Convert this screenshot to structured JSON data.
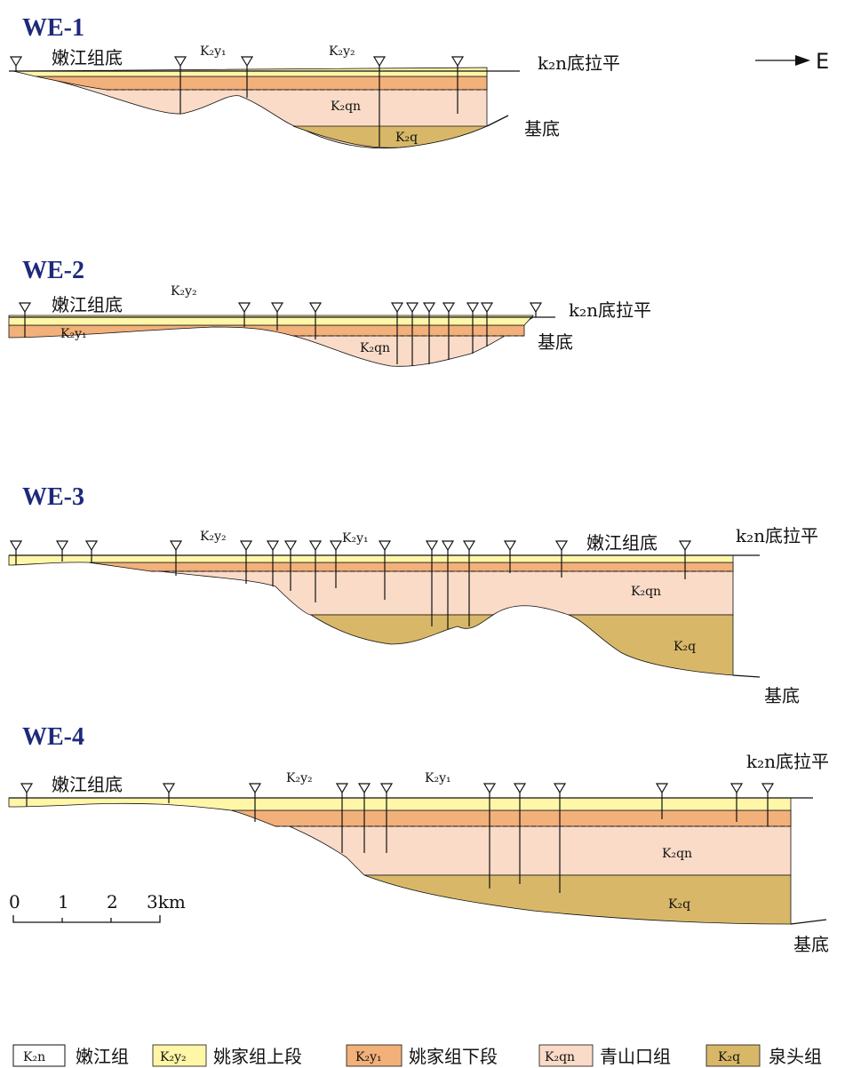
{
  "arrow": "E",
  "sections": [
    {
      "title": "WE-1",
      "labels": [
        "嫩江组底",
        "K₂y₁",
        "K₂y₂",
        "k₂n底拉平",
        "K₂qn",
        "K₂q",
        "基底"
      ]
    },
    {
      "title": "WE-2",
      "labels": [
        "嫩江组底",
        "K₂y₂",
        "k₂n底拉平",
        "K₂y₁",
        "K₂qn",
        "基底"
      ]
    },
    {
      "title": "WE-3",
      "labels": [
        "K₂y₂",
        "K₂y₁",
        "嫩江组底",
        "k₂n底拉平",
        "K₂qn",
        "K₂q",
        "基底"
      ]
    },
    {
      "title": "WE-4",
      "labels": [
        "嫩江组底",
        "K₂y₂",
        "K₂y₁",
        "k₂n底拉平",
        "K₂qn",
        "K₂q",
        "基底"
      ]
    }
  ],
  "scale": [
    "0",
    "1",
    "2",
    "3km"
  ],
  "legend": [
    {
      "code": "K₂n",
      "name": "嫩江组"
    },
    {
      "code": "K₂y₂",
      "name": "姚家组上段"
    },
    {
      "code": "K₂y₁",
      "name": "姚家组下段"
    },
    {
      "code": "K₂qn",
      "name": "青山口组"
    },
    {
      "code": "K₂q",
      "name": "泉头组"
    }
  ]
}
